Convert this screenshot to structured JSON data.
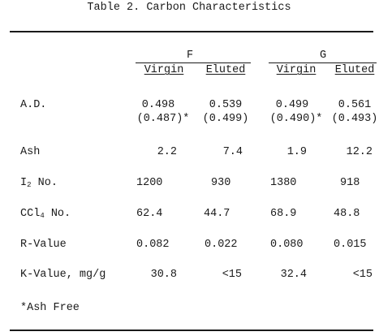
{
  "table": {
    "caption": "Table 2.  Carbon Characteristics",
    "groups": [
      "F",
      "G"
    ],
    "subheads": [
      "Virgin",
      "Eluted",
      "Virgin",
      "Eluted"
    ],
    "rows": [
      {
        "label": "A.D.",
        "values": [
          "0.498",
          "0.539",
          "0.499",
          "0.561"
        ],
        "values2": [
          "(0.487)*",
          "(0.499)",
          "(0.490)*",
          "(0.493)"
        ]
      },
      {
        "label": "Ash",
        "values": [
          "2.2",
          "7.4",
          "1.9",
          "12.2"
        ]
      },
      {
        "label_main": "I",
        "label_sub": "2",
        "label_rest": " No.",
        "values": [
          "1200",
          "930",
          "1380",
          "918"
        ]
      },
      {
        "label_main": "CCl",
        "label_sub": "4",
        "label_rest": " No.",
        "values": [
          "62.4",
          "44.7",
          "68.9",
          "48.8"
        ]
      },
      {
        "label": "R-Value",
        "values": [
          "0.082",
          "0.022",
          "0.080",
          "0.015"
        ]
      },
      {
        "label": "K-Value, mg/g",
        "values": [
          "30.8",
          "<15",
          "32.4",
          "<15"
        ]
      }
    ],
    "footnote": "*Ash Free"
  }
}
